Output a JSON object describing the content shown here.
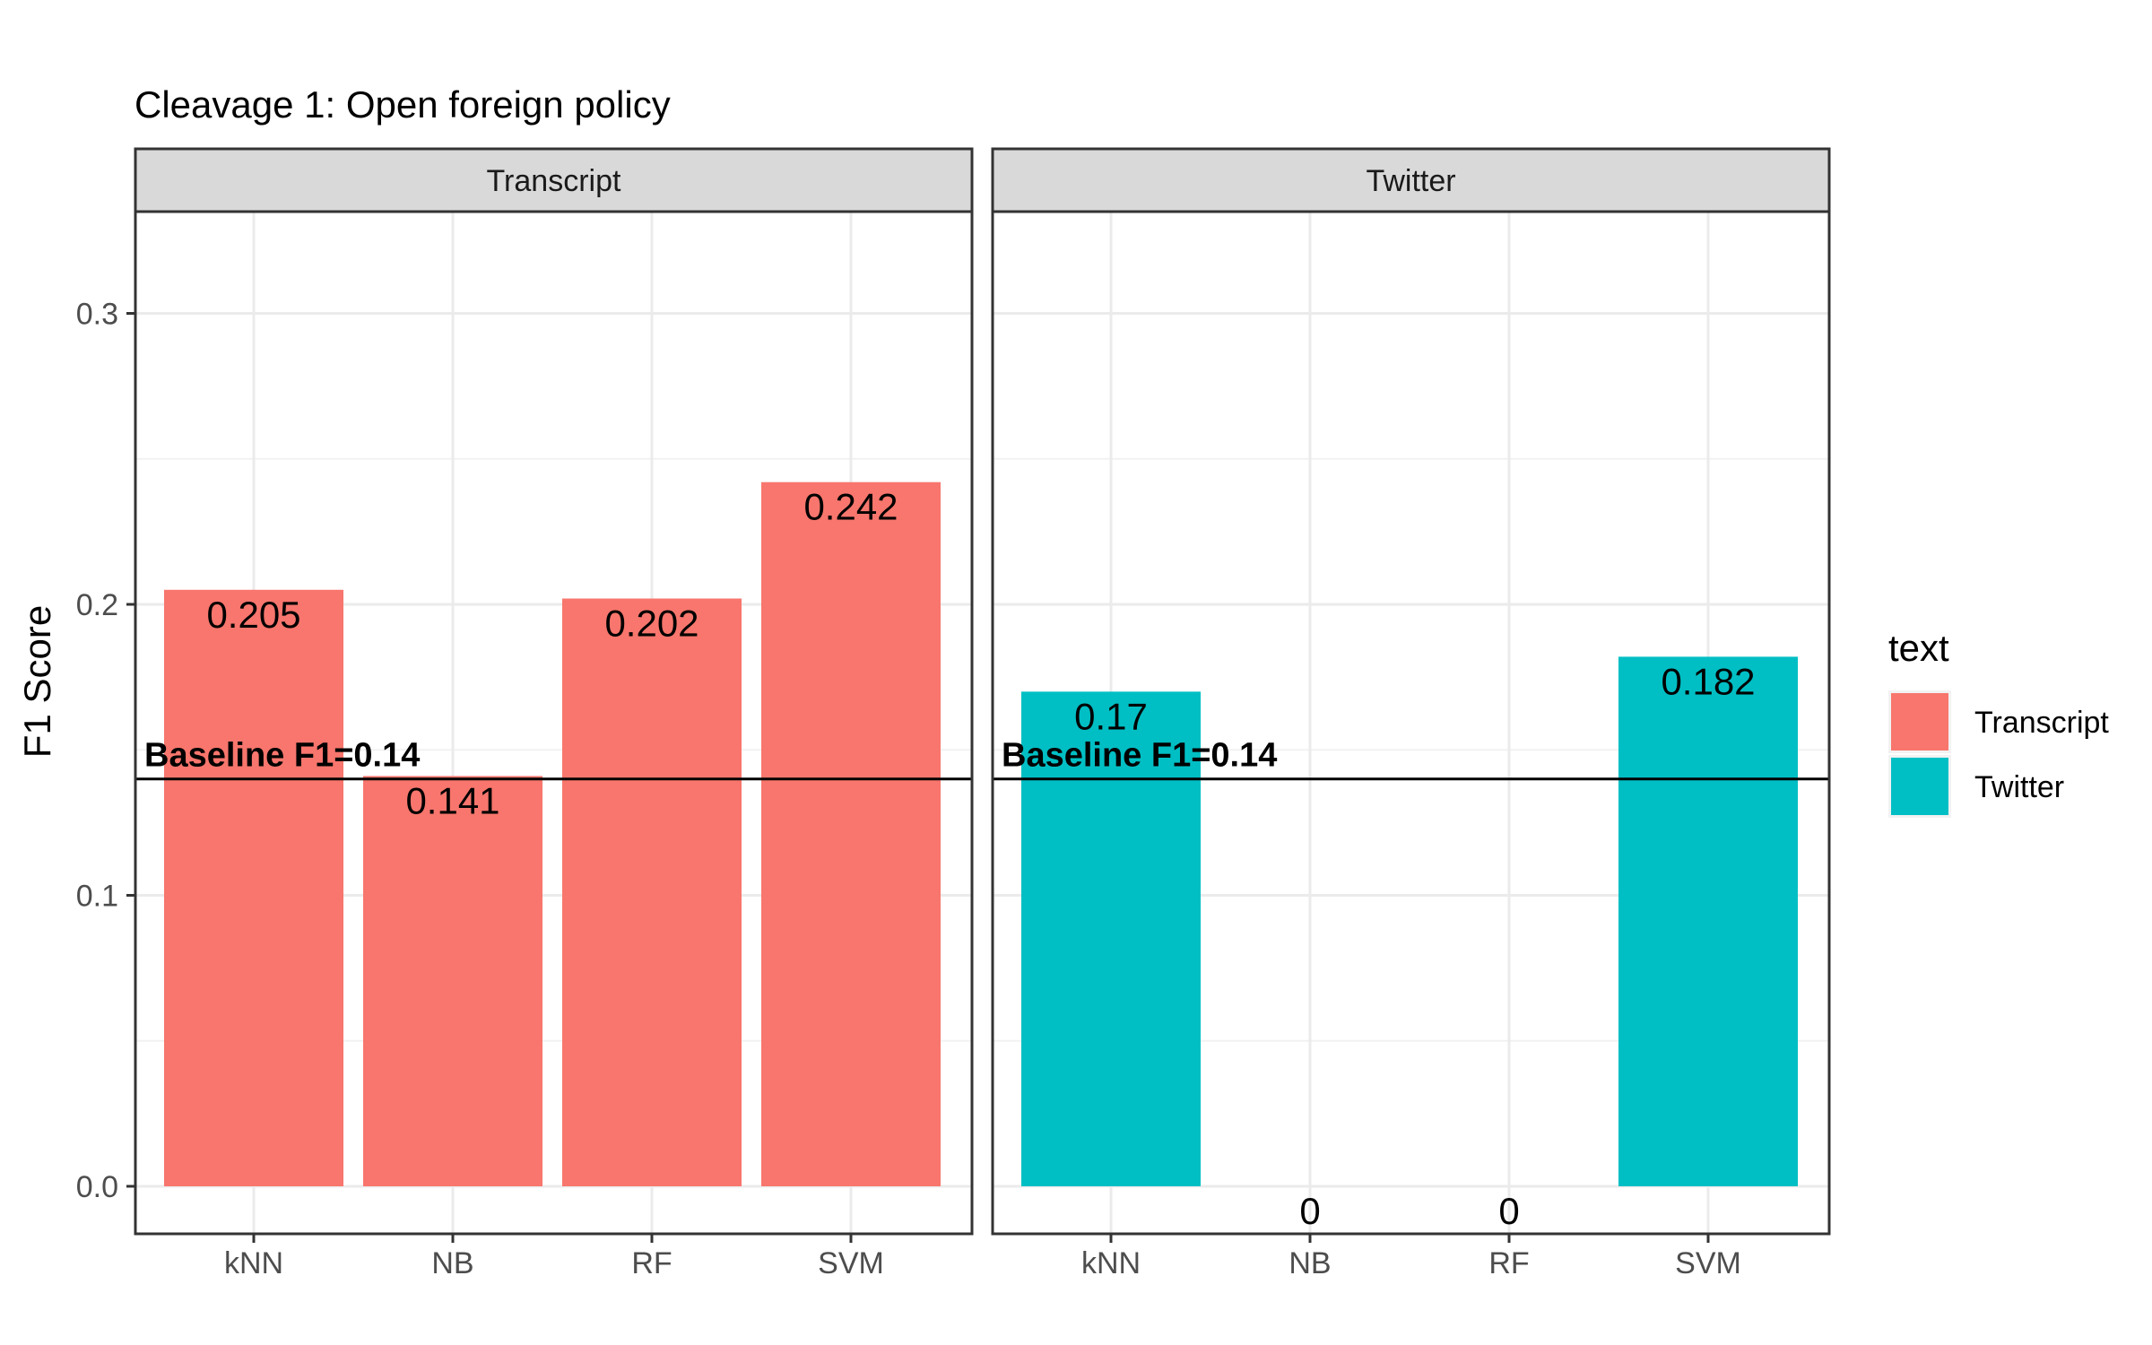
{
  "chart_data": {
    "type": "bar",
    "title": "Cleavage 1: Open foreign policy",
    "ylabel": "F1 Score",
    "xlabel": "",
    "ylim": [
      0,
      0.33
    ],
    "yticks": [
      "0.0",
      "0.1",
      "0.2",
      "0.3"
    ],
    "ytick_values": [
      0,
      0.1,
      0.2,
      0.3
    ],
    "categories": [
      "kNN",
      "NB",
      "RF",
      "SVM"
    ],
    "grid": true,
    "legend": {
      "title": "text",
      "position": "right",
      "entries": [
        {
          "label": "Transcript",
          "color": "#F8766D"
        },
        {
          "label": "Twitter",
          "color": "#00BFC4"
        }
      ]
    },
    "baseline": {
      "value": 0.14,
      "label": "Baseline F1=0.14"
    },
    "panels": [
      {
        "strip": "Transcript",
        "color": "#F8766D",
        "values": [
          0.205,
          0.141,
          0.202,
          0.242
        ],
        "labels": [
          "0.205",
          "0.141",
          "0.202",
          "0.242"
        ]
      },
      {
        "strip": "Twitter",
        "color": "#00BFC4",
        "values": [
          0.17,
          0,
          0,
          0.182
        ],
        "labels": [
          "0.17",
          "0",
          "0",
          "0.182"
        ]
      }
    ]
  }
}
